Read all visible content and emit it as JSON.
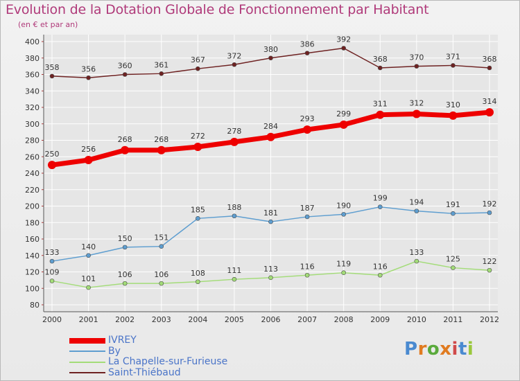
{
  "title": "Evolution de la Dotation Globale de Fonctionnement par Habitant",
  "subtitle": "(en € et par an)",
  "logo_text": "Proxiti",
  "colors": {
    "title": "#b03a7a",
    "legend_text": "#4a74c8",
    "grid": "#ffffff",
    "axis_tick_text": "#333333"
  },
  "chart_data": {
    "type": "line",
    "title": "Evolution de la Dotation Globale de Fonctionnement par Habitant",
    "subtitle": "(en € et par an)",
    "xlabel": "",
    "ylabel": "",
    "categories": [
      "2000",
      "2001",
      "2002",
      "2003",
      "2004",
      "2005",
      "2006",
      "2007",
      "2008",
      "2009",
      "2010",
      "2011",
      "2012"
    ],
    "ylim": [
      80,
      400
    ],
    "ytick_step": 20,
    "grid": true,
    "legend_position": "bottom-left",
    "series": [
      {
        "name": "IVREY",
        "color": "#ee0000",
        "values": [
          250,
          256,
          268,
          268,
          272,
          278,
          284,
          293,
          299,
          311,
          312,
          310,
          314
        ]
      },
      {
        "name": "By",
        "color": "#5e9ed0",
        "values": [
          133,
          140,
          150,
          151,
          185,
          188,
          181,
          187,
          190,
          199,
          194,
          191,
          192
        ]
      },
      {
        "name": "La Chapelle-sur-Furieuse",
        "color": "#a3dc78",
        "values": [
          109,
          101,
          106,
          106,
          108,
          111,
          113,
          116,
          119,
          116,
          133,
          125,
          122
        ]
      },
      {
        "name": "Saint-Thiébaud",
        "color": "#6e2222",
        "values": [
          358,
          356,
          360,
          361,
          367,
          372,
          380,
          386,
          392,
          368,
          370,
          371,
          368
        ]
      }
    ]
  }
}
